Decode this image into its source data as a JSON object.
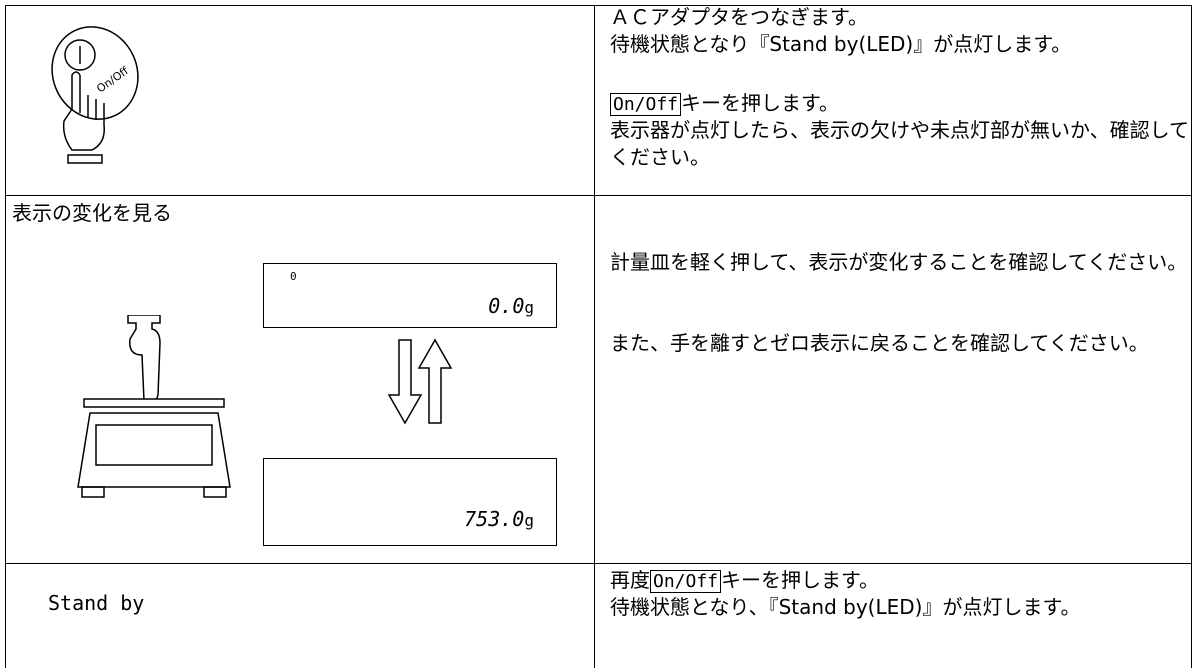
{
  "table": {
    "rows": [
      {
        "left": {
          "icon_label": "On/Off"
        },
        "right": {
          "p1": "ＡＣアダプタをつなぎます。",
          "p2": "待機状態となり『Stand by(LED)』が点灯します。",
          "key": "On/Off",
          "key_text": "キーを押します。",
          "p3": "表示器が点灯したら、表示の欠けや未点灯部が無いか、確認してください。"
        }
      },
      {
        "left": {
          "title": "表示の変化を見る",
          "display_top": {
            "indicator": "0",
            "value": "0.0",
            "unit": "g"
          },
          "display_bottom": {
            "value": "753.0",
            "unit": "g"
          }
        },
        "right": {
          "p1": "計量皿を軽く押して、表示が変化することを確認してください。",
          "p2": "また、手を離すとゼロ表示に戻ることを確認してください。"
        }
      },
      {
        "left": {
          "label": "Stand by"
        },
        "right": {
          "prefix": "再度",
          "key": "On/Off",
          "key_text": "キーを押します。",
          "p2": "待機状態となり、『Stand by(LED)』が点灯します。"
        }
      }
    ]
  }
}
